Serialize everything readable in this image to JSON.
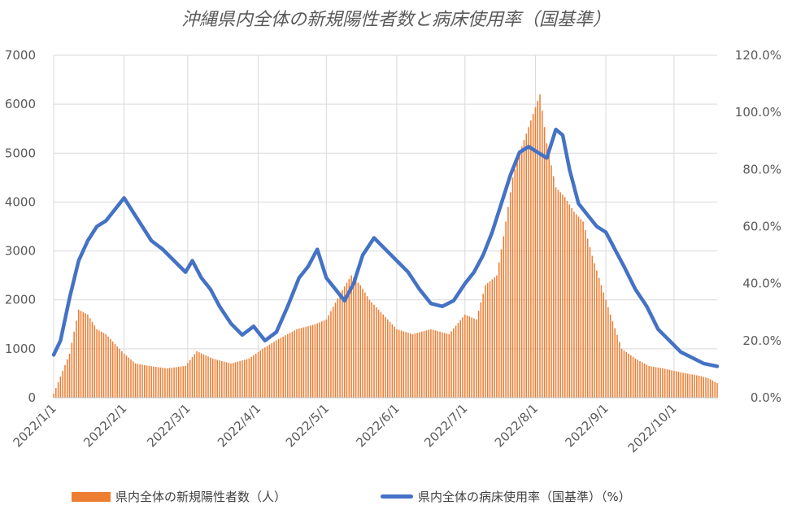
{
  "chart_data": {
    "type": "bar+line",
    "title": "沖縄県内全体の新規陽性者数と病床使用率（国基準）",
    "y_left": {
      "min": 0,
      "max": 7000,
      "ticks": [
        "0",
        "1000",
        "2000",
        "3000",
        "4000",
        "5000",
        "6000",
        "7000"
      ]
    },
    "y_right": {
      "min": 0,
      "max": 120,
      "ticks": [
        "0.0%",
        "20.0%",
        "40.0%",
        "60.0%",
        "80.0%",
        "100.0%",
        "120.0%"
      ]
    },
    "x_ticks": [
      "2022/1/1",
      "2022/2/1",
      "2022/3/1",
      "2022/4/1",
      "2022/5/1",
      "2022/6/1",
      "2022/7/1",
      "2022/8/1",
      "2022/9/1",
      "2022/10/1"
    ],
    "x_range": [
      "2022-01-01",
      "2022-10-20"
    ],
    "gridlines": true,
    "legend_position": "bottom",
    "series": [
      {
        "name": "県内全体の新規陽性者数（人）",
        "kind": "bar",
        "axis": "left",
        "color": "#ED7D31",
        "x": [
          "2022-01-01",
          "2022-01-08",
          "2022-01-12",
          "2022-01-16",
          "2022-01-20",
          "2022-01-24",
          "2022-01-28",
          "2022-02-01",
          "2022-02-06",
          "2022-02-12",
          "2022-02-20",
          "2022-02-28",
          "2022-03-05",
          "2022-03-12",
          "2022-03-20",
          "2022-03-28",
          "2022-04-03",
          "2022-04-10",
          "2022-04-18",
          "2022-04-26",
          "2022-05-01",
          "2022-05-08",
          "2022-05-12",
          "2022-05-16",
          "2022-05-20",
          "2022-05-26",
          "2022-06-01",
          "2022-06-08",
          "2022-06-16",
          "2022-06-24",
          "2022-07-01",
          "2022-07-06",
          "2022-07-10",
          "2022-07-15",
          "2022-07-18",
          "2022-07-22",
          "2022-07-25",
          "2022-07-28",
          "2022-07-31",
          "2022-08-03",
          "2022-08-06",
          "2022-08-10",
          "2022-08-14",
          "2022-08-18",
          "2022-08-22",
          "2022-08-26",
          "2022-08-30",
          "2022-09-03",
          "2022-09-08",
          "2022-09-14",
          "2022-09-20",
          "2022-09-26",
          "2022-10-01",
          "2022-10-06",
          "2022-10-12",
          "2022-10-16",
          "2022-10-20"
        ],
        "y": [
          80,
          900,
          1800,
          1700,
          1400,
          1300,
          1100,
          900,
          700,
          650,
          600,
          650,
          950,
          800,
          700,
          800,
          1000,
          1200,
          1400,
          1500,
          1600,
          2200,
          2500,
          2300,
          2000,
          1700,
          1400,
          1300,
          1400,
          1300,
          1700,
          1600,
          2300,
          2500,
          3300,
          4500,
          5000,
          5400,
          5800,
          6200,
          5200,
          4300,
          4100,
          3800,
          3600,
          2900,
          2300,
          1700,
          1000,
          800,
          650,
          600,
          550,
          500,
          450,
          400,
          300
        ]
      },
      {
        "name": "県内全体の病床使用率（国基準）（%）",
        "kind": "line",
        "axis": "right",
        "color": "#4472C4",
        "x": [
          "2022-01-01",
          "2022-01-04",
          "2022-01-08",
          "2022-01-12",
          "2022-01-16",
          "2022-01-20",
          "2022-01-24",
          "2022-01-28",
          "2022-02-01",
          "2022-02-05",
          "2022-02-09",
          "2022-02-13",
          "2022-02-18",
          "2022-02-23",
          "2022-02-28",
          "2022-03-03",
          "2022-03-07",
          "2022-03-11",
          "2022-03-15",
          "2022-03-20",
          "2022-03-25",
          "2022-03-30",
          "2022-04-04",
          "2022-04-09",
          "2022-04-14",
          "2022-04-19",
          "2022-04-23",
          "2022-04-27",
          "2022-05-01",
          "2022-05-05",
          "2022-05-09",
          "2022-05-13",
          "2022-05-17",
          "2022-05-22",
          "2022-05-27",
          "2022-06-01",
          "2022-06-06",
          "2022-06-11",
          "2022-06-16",
          "2022-06-21",
          "2022-06-26",
          "2022-07-01",
          "2022-07-05",
          "2022-07-09",
          "2022-07-13",
          "2022-07-17",
          "2022-07-21",
          "2022-07-25",
          "2022-07-29",
          "2022-08-02",
          "2022-08-06",
          "2022-08-10",
          "2022-08-13",
          "2022-08-16",
          "2022-08-20",
          "2022-08-24",
          "2022-08-28",
          "2022-09-01",
          "2022-09-05",
          "2022-09-09",
          "2022-09-14",
          "2022-09-19",
          "2022-09-24",
          "2022-09-29",
          "2022-10-04",
          "2022-10-09",
          "2022-10-14",
          "2022-10-20"
        ],
        "y": [
          15,
          20,
          35,
          48,
          55,
          60,
          62,
          66,
          70,
          65,
          60,
          55,
          52,
          48,
          44,
          48,
          42,
          38,
          32,
          26,
          22,
          25,
          20,
          23,
          32,
          42,
          46,
          52,
          42,
          38,
          34,
          40,
          50,
          56,
          52,
          48,
          44,
          38,
          33,
          32,
          34,
          40,
          44,
          50,
          58,
          68,
          78,
          86,
          88,
          86,
          84,
          94,
          92,
          80,
          68,
          64,
          60,
          58,
          52,
          46,
          38,
          32,
          24,
          20,
          16,
          14,
          12,
          11
        ]
      }
    ]
  }
}
